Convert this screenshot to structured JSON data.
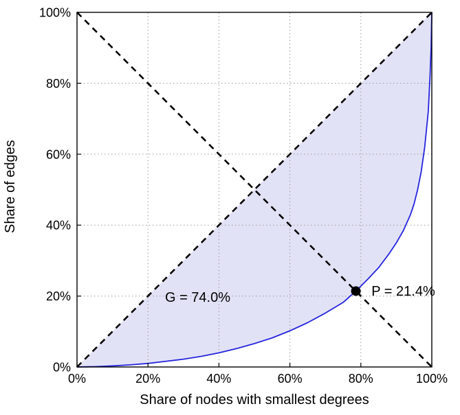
{
  "figure": {
    "background": "#ffffff"
  },
  "chart_data": {
    "type": "line",
    "title": "",
    "xlabel": "Share of nodes with smallest degrees",
    "ylabel": "Share of edges",
    "xlim": [
      0,
      100
    ],
    "ylim": [
      0,
      100
    ],
    "grid": true,
    "grid_color": "#999999",
    "frame_color": "#000000",
    "x_ticks": [
      0,
      20,
      40,
      60,
      80,
      100
    ],
    "y_ticks": [
      0,
      20,
      40,
      60,
      80,
      100
    ],
    "x_tick_labels": [
      "0%",
      "20%",
      "40%",
      "60%",
      "80%",
      "100%"
    ],
    "y_tick_labels": [
      "0%",
      "20%",
      "40%",
      "60%",
      "80%",
      "100%"
    ],
    "series": [
      {
        "name": "lorenz-curve",
        "type": "line",
        "color": "#2424dd",
        "width": 1.8,
        "x": [
          0,
          5,
          10,
          15,
          20,
          25,
          30,
          35,
          40,
          45,
          50,
          55,
          60,
          65,
          70,
          75,
          78.6,
          82,
          85,
          88,
          90,
          92,
          94,
          95,
          96,
          97,
          98,
          99,
          99.5,
          99.8,
          100
        ],
        "y": [
          0,
          0.1,
          0.3,
          0.6,
          1.0,
          1.6,
          2.2,
          3.0,
          4.0,
          5.2,
          6.6,
          8.2,
          10.2,
          12.5,
          15.2,
          18.2,
          21.4,
          24.8,
          28,
          32,
          35,
          38.5,
          43,
          46,
          50,
          55,
          62,
          72,
          82,
          90,
          100
        ]
      },
      {
        "name": "equality-line",
        "type": "dashed",
        "color": "#000000",
        "width": 2.6,
        "x": [
          0,
          100
        ],
        "y": [
          0,
          100
        ]
      },
      {
        "name": "anti-diagonal-line",
        "type": "dashed",
        "color": "#000000",
        "width": 2.6,
        "x": [
          0,
          100
        ],
        "y": [
          100,
          0
        ]
      }
    ],
    "fill_between": {
      "description": "shaded area between equality line and Lorenz curve",
      "color": "#e2e2f6"
    },
    "marker_point": {
      "x": 78.6,
      "y": 21.4,
      "color": "#000000"
    },
    "annotations": [
      {
        "text": "G = 74.0%",
        "x": 24.8,
        "y": 18.4,
        "anchor": "start"
      },
      {
        "text": "P = 21.4%",
        "x": 83.0,
        "y": 20.1,
        "anchor": "start"
      }
    ],
    "gini_percent": 74.0,
    "p_index_percent": 21.4
  }
}
